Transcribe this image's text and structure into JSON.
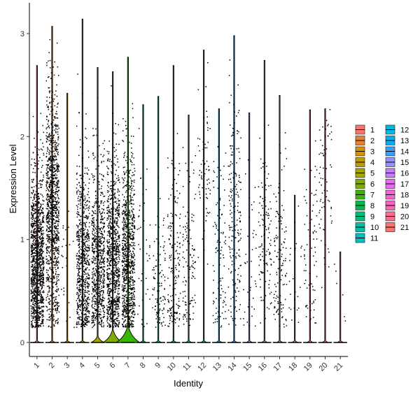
{
  "chart_data": {
    "type": "violin",
    "xlabel": "Identity",
    "ylabel": "Expression Level",
    "ylim": [
      -0.14,
      3.3
    ],
    "yticks": [
      0,
      1,
      2,
      3
    ],
    "categories": [
      "1",
      "2",
      "3",
      "4",
      "5",
      "6",
      "7",
      "8",
      "9",
      "10",
      "11",
      "12",
      "13",
      "14",
      "15",
      "16",
      "17",
      "18",
      "19",
      "20",
      "21"
    ],
    "colors": [
      "#F8766D",
      "#EA8331",
      "#D89000",
      "#C09B00",
      "#A3A500",
      "#7CAE00",
      "#39B600",
      "#00BB4E",
      "#00BF7D",
      "#00C1A3",
      "#00BFC4",
      "#00BAE0",
      "#00B0F6",
      "#35A2FF",
      "#9590FF",
      "#C77CFF",
      "#E76BF3",
      "#FA62DB",
      "#FF62BC",
      "#FF6C91",
      "#F8766D"
    ],
    "series": [
      {
        "cluster": "1",
        "max": 2.69,
        "points": 1200,
        "mean": 0.8,
        "sd": 0.45,
        "bulge": 0
      },
      {
        "cluster": "2",
        "max": 3.07,
        "points": 1100,
        "mean": 1.3,
        "sd": 0.6,
        "bulge": 0
      },
      {
        "cluster": "3",
        "max": 2.42,
        "points": 25,
        "mean": 0.7,
        "sd": 0.4,
        "bulge": 0
      },
      {
        "cluster": "4",
        "max": 3.14,
        "points": 700,
        "mean": 0.8,
        "sd": 0.5,
        "bulge": 0
      },
      {
        "cluster": "5",
        "max": 2.67,
        "points": 700,
        "mean": 0.8,
        "sd": 0.5,
        "bulge": 0.05
      },
      {
        "cluster": "6",
        "max": 2.63,
        "points": 900,
        "mean": 0.8,
        "sd": 0.5,
        "bulge": 0.1
      },
      {
        "cluster": "7",
        "max": 2.77,
        "points": 900,
        "mean": 0.8,
        "sd": 0.5,
        "bulge": 0.13
      },
      {
        "cluster": "8",
        "max": 2.31,
        "points": 40,
        "mean": 0.8,
        "sd": 0.5,
        "bulge": 0
      },
      {
        "cluster": "9",
        "max": 2.39,
        "points": 110,
        "mean": 0.6,
        "sd": 0.4,
        "bulge": 0
      },
      {
        "cluster": "10",
        "max": 2.69,
        "points": 170,
        "mean": 0.8,
        "sd": 0.5,
        "bulge": 0
      },
      {
        "cluster": "11",
        "max": 2.21,
        "points": 120,
        "mean": 0.8,
        "sd": 0.5,
        "bulge": 0
      },
      {
        "cluster": "12",
        "max": 2.84,
        "points": 70,
        "mean": 1.7,
        "sd": 0.4,
        "bulge": 0
      },
      {
        "cluster": "13",
        "max": 2.27,
        "points": 110,
        "mean": 0.8,
        "sd": 0.5,
        "bulge": 0
      },
      {
        "cluster": "14",
        "max": 2.98,
        "points": 190,
        "mean": 1.2,
        "sd": 0.6,
        "bulge": 0
      },
      {
        "cluster": "15",
        "max": 2.23,
        "points": 40,
        "mean": 0.8,
        "sd": 0.5,
        "bulge": 0
      },
      {
        "cluster": "16",
        "max": 2.74,
        "points": 120,
        "mean": 1.0,
        "sd": 0.5,
        "bulge": 0
      },
      {
        "cluster": "17",
        "max": 2.4,
        "points": 120,
        "mean": 0.8,
        "sd": 0.5,
        "bulge": 0
      },
      {
        "cluster": "18",
        "max": 1.43,
        "points": 25,
        "mean": 0.7,
        "sd": 0.4,
        "bulge": 0
      },
      {
        "cluster": "19",
        "max": 2.26,
        "points": 75,
        "mean": 0.8,
        "sd": 0.5,
        "bulge": 0
      },
      {
        "cluster": "20",
        "max": 2.27,
        "points": 70,
        "mean": 1.5,
        "sd": 0.5,
        "bulge": 0
      },
      {
        "cluster": "21",
        "max": 0.88,
        "points": 6,
        "mean": 0.5,
        "sd": 0.3,
        "bulge": 0
      }
    ],
    "legend": {
      "position": "right",
      "columns": 2,
      "entries": [
        "1",
        "2",
        "3",
        "4",
        "5",
        "6",
        "7",
        "8",
        "9",
        "10",
        "11",
        "12",
        "13",
        "14",
        "15",
        "16",
        "17",
        "18",
        "19",
        "20",
        "21"
      ]
    },
    "grid": false
  }
}
